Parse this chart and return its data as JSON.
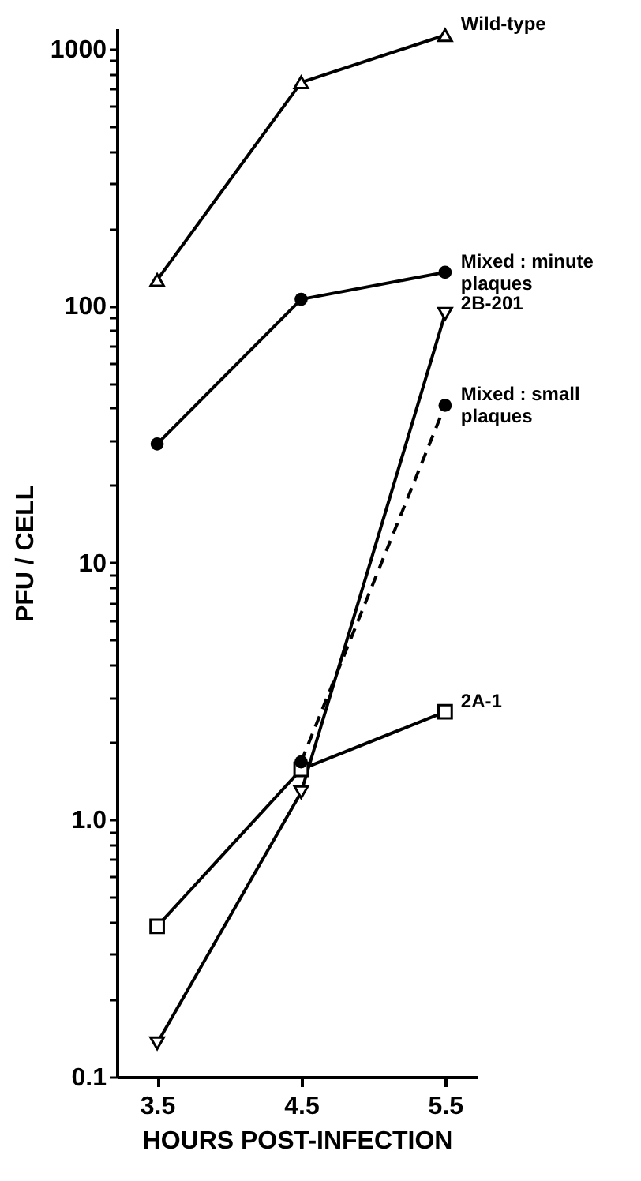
{
  "chart_data": {
    "type": "line",
    "xlabel": "HOURS POST-INFECTION",
    "ylabel": "PFU / CELL",
    "log": "y",
    "grid": false,
    "xlim": [
      3.22,
      5.72
    ],
    "xticks": [
      3.5,
      4.5,
      5.5
    ],
    "ylim": [
      0.1,
      1200
    ],
    "yticks": [
      0.1,
      {
        "value": 0.2,
        "label": null
      },
      {
        "value": 0.3,
        "label": null
      },
      {
        "value": 0.4,
        "label": null
      },
      {
        "value": 0.5,
        "label": null
      },
      {
        "value": 0.6,
        "label": null
      },
      {
        "value": 0.7,
        "label": null
      },
      {
        "value": 0.8,
        "label": null
      },
      {
        "value": 0.9,
        "label": null
      },
      {
        "value": 1,
        "label": "1.0"
      },
      {
        "value": 2,
        "label": null
      },
      {
        "value": 3,
        "label": null
      },
      {
        "value": 4,
        "label": null
      },
      {
        "value": 5,
        "label": null
      },
      {
        "value": 6,
        "label": null
      },
      {
        "value": 7,
        "label": null
      },
      {
        "value": 8,
        "label": null
      },
      {
        "value": 9,
        "label": null
      },
      10,
      {
        "value": 20,
        "label": null
      },
      {
        "value": 30,
        "label": null
      },
      {
        "value": 40,
        "label": null
      },
      {
        "value": 50,
        "label": null
      },
      {
        "value": 60,
        "label": null
      },
      {
        "value": 70,
        "label": null
      },
      {
        "value": 80,
        "label": null
      },
      {
        "value": 90,
        "label": null
      },
      100,
      {
        "value": 200,
        "label": null
      },
      {
        "value": 300,
        "label": null
      },
      {
        "value": 400,
        "label": null
      },
      {
        "value": 500,
        "label": null
      },
      {
        "value": 600,
        "label": null
      },
      {
        "value": 700,
        "label": null
      },
      {
        "value": 800,
        "label": null
      },
      {
        "value": 900,
        "label": null
      },
      1000
    ],
    "x": [
      3.5,
      4.5,
      5.5
    ],
    "series": [
      {
        "name": "Wild-type",
        "color": "#000000",
        "marker": "triangle",
        "line_style": "solid",
        "values": [
          126,
          740,
          1130
        ]
      },
      {
        "name": "Mixed : minute plaques",
        "color": "#000000",
        "marker": "circle",
        "line_style": "solid",
        "values": [
          29,
          106,
          135
        ]
      },
      {
        "name": "2B-201",
        "color": "#000000",
        "marker": "triangle-down",
        "line_style": "solid",
        "values": [
          0.135,
          1.28,
          93
        ]
      },
      {
        "name": "Mixed : small plaques",
        "color": "#000000",
        "marker": "circle",
        "line_style": "dashed",
        "x": [
          4.5,
          5.5
        ],
        "values": [
          1.68,
          41
        ]
      },
      {
        "name": "2A-1",
        "color": "#000000",
        "marker": "square",
        "line_style": "solid",
        "values": [
          0.385,
          1.57,
          2.63
        ]
      }
    ]
  }
}
